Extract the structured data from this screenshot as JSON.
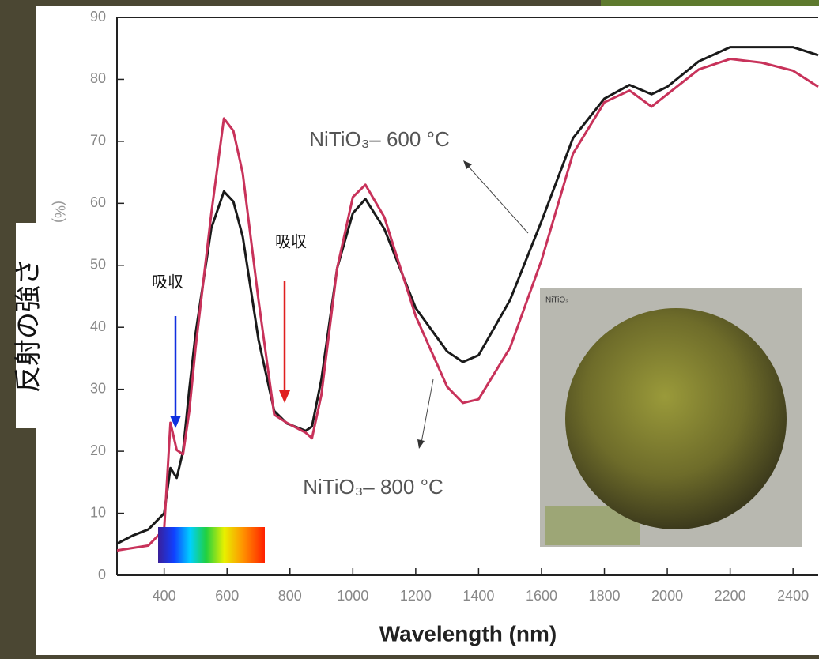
{
  "chart_data": {
    "type": "line",
    "y_label": "反射の強さ",
    "y_label_partial": "(%)",
    "x_label": "Wavelength (nm)",
    "annotations": {
      "upper": "NiTiO₃– 600 °C",
      "lower": "NiTiO₃– 800 °C",
      "absorb_blue": "吸収",
      "absorb_red": "吸収",
      "inset": "NiTiO₃"
    },
    "x": [
      250,
      300,
      350,
      400,
      420,
      440,
      460,
      480,
      500,
      550,
      590,
      620,
      650,
      700,
      750,
      790,
      850,
      870,
      900,
      950,
      1000,
      1040,
      1100,
      1200,
      1300,
      1350,
      1400,
      1500,
      1600,
      1700,
      1800,
      1880,
      1950,
      2000,
      2100,
      2200,
      2300,
      2400,
      2480
    ],
    "series": [
      {
        "color": "#1a1a1a",
        "values": [
          5.1,
          6.4,
          7.4,
          10,
          17.3,
          15.7,
          20,
          30,
          39,
          56,
          61.9,
          60.3,
          54.6,
          38,
          26.5,
          24.5,
          23.3,
          24,
          31.6,
          49.5,
          58.4,
          60.7,
          55.9,
          43.1,
          36.1,
          34.4,
          35.5,
          44.4,
          57.1,
          70.5,
          76.9,
          79.1,
          77.6,
          78.8,
          82.9,
          85.2,
          85.2,
          85.2,
          83.9
        ]
      },
      {
        "color": "#c8325a",
        "values": [
          4.0,
          4.4,
          4.8,
          7.4,
          24.6,
          20.2,
          19.5,
          26.5,
          36.7,
          58.4,
          73.7,
          71.7,
          64.8,
          44.4,
          25.9,
          24.6,
          23,
          22.1,
          29.1,
          49.5,
          61,
          63,
          57.8,
          41.8,
          30.4,
          27.8,
          28.4,
          36.7,
          50.8,
          68,
          76.3,
          78.2,
          75.6,
          77.6,
          81.6,
          83.3,
          82.7,
          81.4,
          78.8
        ]
      }
    ],
    "xlim": [
      250,
      2480
    ],
    "ylim": [
      0,
      90
    ],
    "xticks": [
      400,
      600,
      800,
      1000,
      1200,
      1400,
      1600,
      1800,
      2000,
      2200,
      2400
    ],
    "yticks": [
      0,
      10,
      20,
      30,
      40,
      50,
      60,
      70,
      80,
      90
    ]
  }
}
